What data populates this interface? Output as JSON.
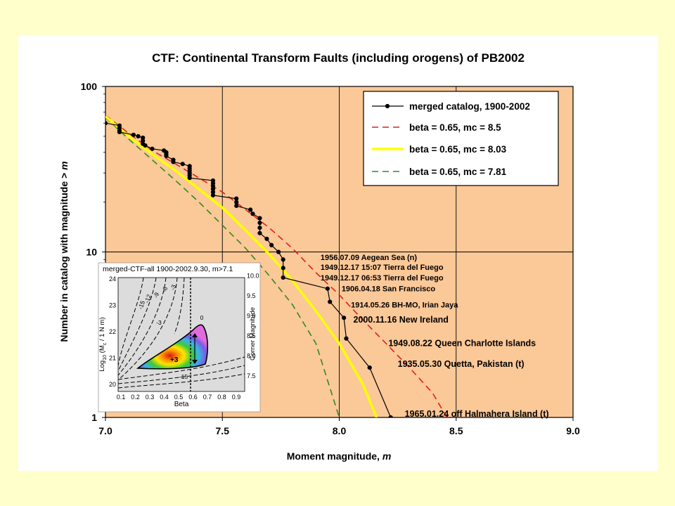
{
  "chart_data": {
    "type": "line",
    "title": "CTF: Continental Transform Faults (including orogens) of PB2002",
    "xlabel": "Moment magnitude, ",
    "xlabel_var": "m",
    "ylabel": "Number in catalog with magnitude > ",
    "ylabel_var": "m",
    "xlim": [
      7.0,
      9.0
    ],
    "ylim": [
      1,
      100
    ],
    "y_scale": "log",
    "grid": true,
    "plot_background": "#fbc898",
    "x_ticks": [
      "7.0",
      "7.5",
      "8.0",
      "8.5",
      "9.0"
    ],
    "y_ticks": [
      "1",
      "10",
      "100"
    ],
    "legend_position": "top-right",
    "series": [
      {
        "name": "merged catalog, 1900-2002",
        "color": "#000000",
        "style": "line-markers",
        "points": [
          [
            7.0,
            60
          ],
          [
            7.06,
            58
          ],
          [
            7.06,
            56
          ],
          [
            7.06,
            54
          ],
          [
            7.06,
            53
          ],
          [
            7.12,
            51
          ],
          [
            7.14,
            50
          ],
          [
            7.16,
            49
          ],
          [
            7.16,
            47
          ],
          [
            7.16,
            45
          ],
          [
            7.17,
            44
          ],
          [
            7.2,
            42
          ],
          [
            7.25,
            41
          ],
          [
            7.26,
            40
          ],
          [
            7.26,
            39
          ],
          [
            7.26,
            38
          ],
          [
            7.29,
            36
          ],
          [
            7.29,
            35
          ],
          [
            7.33,
            34
          ],
          [
            7.36,
            33
          ],
          [
            7.36,
            32
          ],
          [
            7.36,
            31
          ],
          [
            7.36,
            30
          ],
          [
            7.36,
            29
          ],
          [
            7.36,
            28
          ],
          [
            7.46,
            27
          ],
          [
            7.46,
            26
          ],
          [
            7.46,
            25
          ],
          [
            7.46,
            24
          ],
          [
            7.46,
            23
          ],
          [
            7.46,
            22
          ],
          [
            7.56,
            21
          ],
          [
            7.56,
            20
          ],
          [
            7.56,
            19
          ],
          [
            7.62,
            18
          ],
          [
            7.63,
            17
          ],
          [
            7.66,
            16
          ],
          [
            7.66,
            15
          ],
          [
            7.66,
            14
          ],
          [
            7.66,
            13
          ],
          [
            7.69,
            12
          ],
          [
            7.71,
            11
          ],
          [
            7.74,
            10
          ],
          [
            7.76,
            9
          ],
          [
            7.76,
            8
          ],
          [
            7.76,
            7
          ],
          [
            7.95,
            6
          ],
          [
            7.96,
            5
          ],
          [
            8.02,
            4
          ],
          [
            8.03,
            3
          ],
          [
            8.13,
            2
          ],
          [
            8.22,
            1
          ]
        ]
      },
      {
        "name": "beta = 0.65, mc = 8.5",
        "color": "#e11e1e",
        "style": "dashed",
        "points": [
          [
            7.0,
            67
          ],
          [
            7.1,
            52
          ],
          [
            7.2,
            41
          ],
          [
            7.3,
            34
          ],
          [
            7.4,
            28
          ],
          [
            7.5,
            23
          ],
          [
            7.6,
            18
          ],
          [
            7.7,
            14
          ],
          [
            7.8,
            10.5
          ],
          [
            7.9,
            7.5
          ],
          [
            8.0,
            5.5
          ],
          [
            8.1,
            3.9
          ],
          [
            8.2,
            2.8
          ],
          [
            8.3,
            2.0
          ],
          [
            8.4,
            1.4
          ],
          [
            8.46,
            1.0
          ]
        ]
      },
      {
        "name": "beta = 0.65, mc = 8.03",
        "color": "#ffff00",
        "style": "solid-thick",
        "points": [
          [
            7.0,
            66
          ],
          [
            7.1,
            50
          ],
          [
            7.2,
            39
          ],
          [
            7.3,
            31
          ],
          [
            7.4,
            24
          ],
          [
            7.5,
            18.5
          ],
          [
            7.6,
            13.5
          ],
          [
            7.7,
            9.7
          ],
          [
            7.8,
            6.7
          ],
          [
            7.9,
            4.4
          ],
          [
            8.0,
            2.8
          ],
          [
            8.1,
            1.6
          ],
          [
            8.16,
            1.0
          ]
        ]
      },
      {
        "name": "beta = 0.65, mc = 7.81",
        "color": "#2e8b1e",
        "style": "dashed",
        "points": [
          [
            7.0,
            65
          ],
          [
            7.1,
            48
          ],
          [
            7.2,
            36
          ],
          [
            7.3,
            27
          ],
          [
            7.4,
            20
          ],
          [
            7.5,
            14.5
          ],
          [
            7.6,
            10.5
          ],
          [
            7.7,
            7.2
          ],
          [
            7.8,
            4.8
          ],
          [
            7.9,
            2.8
          ],
          [
            8.0,
            1.0
          ]
        ]
      }
    ],
    "annotations": [
      {
        "text": "1956.07.09 Aegean Sea (n)",
        "x": 7.92,
        "y": 9.3
      },
      {
        "text": "1949.12.17 15:07 Tierra del Fuego",
        "x": 7.92,
        "y": 8.1
      },
      {
        "text": "1949.12.17 06:53 Tierra del Fuego",
        "x": 7.92,
        "y": 7.0
      },
      {
        "text": "1906.04.18 San Francisco",
        "x": 8.01,
        "y": 6.0
      },
      {
        "text": "1914.05.26 BH-MO, Irian Jaya",
        "x": 8.05,
        "y": 4.8
      },
      {
        "text": "2000.11.16 New Ireland",
        "x": 8.06,
        "y": 3.9
      },
      {
        "text": "1949.08.22 Queen Charlotte Islands",
        "x": 8.21,
        "y": 2.8
      },
      {
        "text": "1935.05.30 Quetta, Pakistan (t)",
        "x": 8.25,
        "y": 2.1
      },
      {
        "text": "1965.01.24 off Halmahera Island (t)",
        "x": 8.28,
        "y": 1.05
      }
    ],
    "inset": {
      "title": "merged-CTF-all 1900-2002.9.30, m>7.1",
      "xlabel": "Beta",
      "ylabel_left": "Log",
      "ylabel_sub": "10",
      "ylabel_rest": " (M",
      "ylabel_sub2": "c",
      "ylabel_end": " / 1 N m)",
      "ylabel_right": "Corner Magnitude",
      "x_ticks": [
        "0.1",
        "0.2",
        "0.3",
        "0.4",
        "0.5",
        "0.6",
        "0.7",
        "0.8",
        "0.9"
      ],
      "y_ticks_left": [
        "20",
        "21",
        "22",
        "23",
        "24"
      ],
      "y_ticks_right": [
        "7.5",
        "8.0",
        "8.5",
        "9.0",
        "9.5",
        "10.0"
      ],
      "contour_labels": [
        "-15",
        "-12",
        "-9",
        "-6",
        "-3",
        "-3",
        "-15",
        "0"
      ],
      "best_fit_mark": "+3"
    }
  }
}
